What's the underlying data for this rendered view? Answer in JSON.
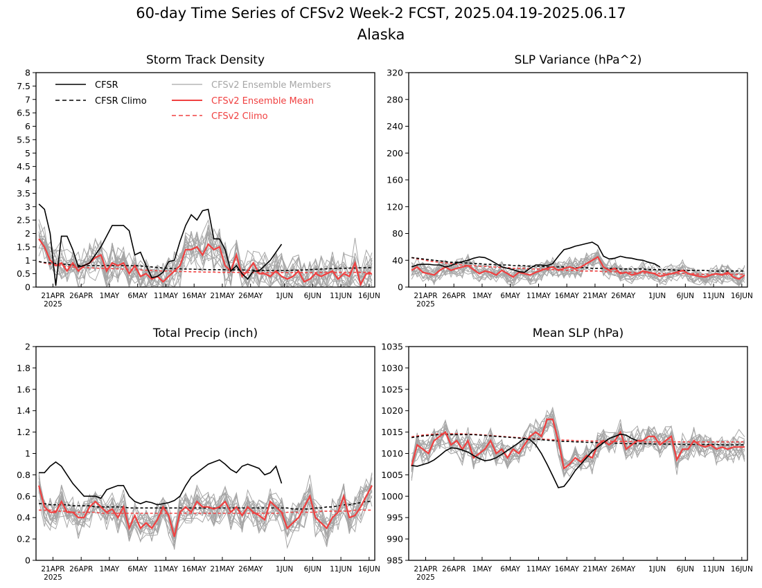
{
  "figure": {
    "title_line1": "60-day Time Series of CFSv2 Week-2 FCST, 2025.04.19-2025.06.17",
    "title_line2": "Alaska"
  },
  "colors": {
    "cfsr": "#000000",
    "ensemble_members": "#a6a6a6",
    "ensemble_mean": "#f04040",
    "cfsv2_climo": "#f04040"
  },
  "legend": {
    "cfsr": "CFSR",
    "cfsr_climo": "CFSR Climo",
    "members": "CFSv2 Ensemble Members",
    "ens_mean": "CFSv2 Ensemble Mean",
    "cfsv2_climo": "CFSv2 Climo"
  },
  "x_axis": {
    "ticks": [
      {
        "label": "21APR",
        "day": 3
      },
      {
        "label": "26APR",
        "day": 8
      },
      {
        "label": "1MAY",
        "day": 13
      },
      {
        "label": "6MAY",
        "day": 18
      },
      {
        "label": "11MAY",
        "day": 23
      },
      {
        "label": "16MAY",
        "day": 28
      },
      {
        "label": "21MAY",
        "day": 33
      },
      {
        "label": "26MAY",
        "day": 38
      },
      {
        "label": "1JUN",
        "day": 44
      },
      {
        "label": "6JUN",
        "day": 49
      },
      {
        "label": "11JUN",
        "day": 54
      },
      {
        "label": "16JUN",
        "day": 59
      }
    ],
    "year_label": "2025",
    "range": [
      0,
      60
    ]
  },
  "chart_data": [
    {
      "type": "line",
      "title": "Storm Track Density",
      "ylim": [
        0,
        8
      ],
      "yticks": [
        "0",
        "0.5",
        "1",
        "1.5",
        "2",
        "2.5",
        "3",
        "3.5",
        "4",
        "4.5",
        "5",
        "5.5",
        "6",
        "6.5",
        "7",
        "7.5",
        "8"
      ],
      "show_legend": true,
      "cfsr": [
        3.1,
        2.9,
        2.0,
        0.05,
        1.9,
        1.9,
        1.4,
        0.75,
        0.8,
        0.9,
        1.2,
        1.5,
        1.9,
        2.3,
        2.3,
        2.3,
        2.1,
        1.2,
        1.3,
        0.8,
        0.35,
        0.4,
        0.55,
        0.95,
        1.0,
        1.7,
        2.3,
        2.7,
        2.5,
        2.85,
        2.9,
        1.8,
        1.8,
        1.4,
        0.6,
        0.8,
        0.5,
        0.3,
        0.6,
        0.6,
        0.8,
        1.0,
        1.3,
        1.6
      ],
      "cfsr_climo": [
        0.95,
        0.92,
        0.9,
        0.88,
        0.86,
        0.84,
        0.82,
        0.81,
        0.8,
        0.8,
        0.8,
        0.8,
        0.8,
        0.8,
        0.8,
        0.8,
        0.8,
        0.8,
        0.79,
        0.77,
        0.75,
        0.73,
        0.71,
        0.7,
        0.69,
        0.68,
        0.67,
        0.67,
        0.66,
        0.66,
        0.65,
        0.65,
        0.65,
        0.65,
        0.64,
        0.64,
        0.64,
        0.63,
        0.63,
        0.63,
        0.62,
        0.62,
        0.62,
        0.62,
        0.62,
        0.63,
        0.63,
        0.64,
        0.65,
        0.66,
        0.67,
        0.68,
        0.69,
        0.7,
        0.7,
        0.71,
        0.71,
        0.72,
        0.72,
        0.72
      ],
      "cfsv2_climo": [
        0.95,
        0.9,
        0.85,
        0.82,
        0.8,
        0.77,
        0.75,
        0.74,
        0.73,
        0.72,
        0.71,
        0.7,
        0.7,
        0.69,
        0.68,
        0.67,
        0.66,
        0.65,
        0.64,
        0.63,
        0.62,
        0.61,
        0.6,
        0.6,
        0.59,
        0.58,
        0.58,
        0.57,
        0.57,
        0.56,
        0.56,
        0.56,
        0.55,
        0.55,
        0.55,
        0.55,
        0.54,
        0.54,
        0.54,
        0.54,
        0.54,
        0.54,
        0.54,
        0.54,
        0.54,
        0.54,
        0.54,
        0.54,
        0.54,
        0.54,
        0.55,
        0.55,
        0.55,
        0.55,
        0.55,
        0.55,
        0.55,
        0.55,
        0.55,
        0.55
      ],
      "ens_mean": [
        1.8,
        1.5,
        1.0,
        0.8,
        0.9,
        0.6,
        0.9,
        0.6,
        0.8,
        0.9,
        1.1,
        1.2,
        0.6,
        0.9,
        0.8,
        0.9,
        0.5,
        0.8,
        0.4,
        0.5,
        0.3,
        0.4,
        0.2,
        0.4,
        0.6,
        0.8,
        1.4,
        1.4,
        1.5,
        1.2,
        1.6,
        1.4,
        1.5,
        0.8,
        0.6,
        1.2,
        0.4,
        0.6,
        0.9,
        0.5,
        0.5,
        0.4,
        0.6,
        0.4,
        0.3,
        0.4,
        0.6,
        0.2,
        0.3,
        0.5,
        0.4,
        0.5,
        0.6,
        0.3,
        0.5,
        0.4,
        0.9,
        0.1,
        0.5,
        0.5
      ],
      "members": {
        "base": "ens_mean",
        "count": 16,
        "spread": 0.75,
        "min": 0,
        "max": 4.2
      }
    },
    {
      "type": "line",
      "title": "SLP Variance (hPa^2)",
      "ylim": [
        0,
        320
      ],
      "yticks": [
        "0",
        "40",
        "80",
        "120",
        "160",
        "200",
        "240",
        "280",
        "320"
      ],
      "show_legend": false,
      "cfsr": [
        30,
        33,
        34,
        34,
        33,
        33,
        30,
        32,
        36,
        38,
        40,
        43,
        45,
        44,
        40,
        35,
        30,
        28,
        26,
        23,
        22,
        28,
        33,
        33,
        32,
        35,
        46,
        56,
        58,
        61,
        63,
        65,
        67,
        62,
        46,
        42,
        43,
        46,
        44,
        43,
        41,
        40,
        37,
        35,
        30
      ],
      "cfsr_climo": [
        44,
        43,
        42,
        41,
        40,
        39,
        38,
        37,
        37,
        36,
        36,
        35,
        35,
        34,
        34,
        33,
        33,
        33,
        32,
        32,
        32,
        31,
        31,
        31,
        30,
        30,
        30,
        30,
        29,
        29,
        29,
        29,
        28,
        28,
        28,
        28,
        28,
        27,
        27,
        27,
        27,
        27,
        26,
        26,
        26,
        26,
        26,
        25,
        25,
        25,
        25,
        25,
        25,
        24,
        24,
        24,
        24,
        24,
        24,
        24
      ],
      "cfsv2_climo": [
        44,
        42,
        41,
        39,
        38,
        37,
        36,
        35,
        34,
        33,
        32,
        32,
        31,
        31,
        30,
        30,
        29,
        29,
        28,
        28,
        28,
        27,
        27,
        27,
        26,
        26,
        26,
        25,
        25,
        25,
        24,
        24,
        24,
        24,
        23,
        23,
        23,
        22,
        22,
        22,
        21,
        21,
        21,
        21,
        20,
        20,
        20,
        20,
        20,
        20,
        20,
        19,
        19,
        19,
        19,
        19,
        19,
        19,
        19,
        19
      ],
      "ens_mean": [
        25,
        30,
        22,
        20,
        18,
        25,
        30,
        25,
        28,
        30,
        32,
        26,
        20,
        24,
        22,
        18,
        25,
        20,
        15,
        22,
        20,
        18,
        22,
        25,
        28,
        30,
        25,
        28,
        30,
        27,
        30,
        35,
        40,
        45,
        30,
        25,
        28,
        20,
        22,
        18,
        20,
        24,
        22,
        20,
        16,
        18,
        20,
        22,
        25,
        20,
        18,
        16,
        15,
        18,
        20,
        18,
        22,
        15,
        12,
        18
      ],
      "members": {
        "base": "ens_mean",
        "count": 16,
        "spread": 14,
        "min": 2,
        "max": 84
      }
    },
    {
      "type": "line",
      "title": "Total Precip (inch)",
      "ylim": [
        0,
        2
      ],
      "yticks": [
        "0",
        "0.2",
        "0.4",
        "0.6",
        "0.8",
        "1",
        "1.2",
        "1.4",
        "1.6",
        "1.8",
        "2"
      ],
      "show_legend": false,
      "cfsr": [
        0.82,
        0.82,
        0.88,
        0.92,
        0.88,
        0.8,
        0.72,
        0.66,
        0.6,
        0.6,
        0.6,
        0.58,
        0.66,
        0.68,
        0.7,
        0.7,
        0.6,
        0.55,
        0.53,
        0.55,
        0.54,
        0.52,
        0.53,
        0.54,
        0.56,
        0.6,
        0.7,
        0.78,
        0.82,
        0.86,
        0.9,
        0.92,
        0.94,
        0.9,
        0.85,
        0.82,
        0.88,
        0.9,
        0.88,
        0.86,
        0.8,
        0.82,
        0.88,
        0.72
      ],
      "cfsr_climo": [
        0.53,
        0.53,
        0.52,
        0.52,
        0.52,
        0.52,
        0.51,
        0.51,
        0.51,
        0.51,
        0.5,
        0.5,
        0.5,
        0.5,
        0.5,
        0.5,
        0.49,
        0.49,
        0.49,
        0.49,
        0.49,
        0.49,
        0.49,
        0.49,
        0.49,
        0.49,
        0.49,
        0.49,
        0.49,
        0.49,
        0.49,
        0.49,
        0.49,
        0.49,
        0.49,
        0.49,
        0.49,
        0.49,
        0.49,
        0.49,
        0.49,
        0.49,
        0.49,
        0.49,
        0.49,
        0.48,
        0.48,
        0.48,
        0.48,
        0.49,
        0.49,
        0.5,
        0.5,
        0.51,
        0.52,
        0.52,
        0.53,
        0.54,
        0.55,
        0.55
      ],
      "cfsv2_climo": [
        0.47,
        0.47,
        0.47,
        0.46,
        0.46,
        0.46,
        0.45,
        0.45,
        0.45,
        0.45,
        0.45,
        0.44,
        0.44,
        0.44,
        0.44,
        0.44,
        0.44,
        0.44,
        0.44,
        0.44,
        0.44,
        0.44,
        0.44,
        0.44,
        0.44,
        0.44,
        0.44,
        0.44,
        0.44,
        0.44,
        0.44,
        0.44,
        0.44,
        0.44,
        0.44,
        0.44,
        0.44,
        0.44,
        0.44,
        0.44,
        0.44,
        0.44,
        0.44,
        0.44,
        0.45,
        0.45,
        0.45,
        0.45,
        0.45,
        0.45,
        0.46,
        0.46,
        0.46,
        0.46,
        0.46,
        0.46,
        0.47,
        0.47,
        0.47,
        0.47
      ],
      "ens_mean": [
        0.7,
        0.5,
        0.45,
        0.45,
        0.55,
        0.45,
        0.45,
        0.4,
        0.4,
        0.5,
        0.55,
        0.5,
        0.45,
        0.48,
        0.4,
        0.5,
        0.3,
        0.42,
        0.3,
        0.35,
        0.3,
        0.38,
        0.5,
        0.42,
        0.22,
        0.45,
        0.5,
        0.45,
        0.55,
        0.5,
        0.5,
        0.48,
        0.5,
        0.55,
        0.45,
        0.5,
        0.42,
        0.5,
        0.45,
        0.42,
        0.38,
        0.55,
        0.5,
        0.45,
        0.3,
        0.35,
        0.4,
        0.5,
        0.6,
        0.4,
        0.35,
        0.3,
        0.4,
        0.45,
        0.6,
        0.4,
        0.42,
        0.5,
        0.6,
        0.7
      ],
      "members": {
        "base": "ens_mean",
        "count": 16,
        "spread": 0.16,
        "min": 0.1,
        "max": 0.82
      }
    },
    {
      "type": "line",
      "title": "Mean SLP (hPa)",
      "ylim": [
        985,
        1035
      ],
      "yticks": [
        "985",
        "990",
        "995",
        "1000",
        "1005",
        "1010",
        "1015",
        "1020",
        "1025",
        "1030",
        "1035"
      ],
      "show_legend": false,
      "cfsr": [
        1007.2,
        1007,
        1007.4,
        1007.8,
        1008.5,
        1009.5,
        1010.6,
        1011.3,
        1011.2,
        1010.8,
        1010.3,
        1009.5,
        1008.8,
        1008.3,
        1008.5,
        1009,
        1009.8,
        1010.7,
        1011.6,
        1012.5,
        1013.5,
        1013.2,
        1012,
        1010,
        1007.5,
        1004.8,
        1002,
        1002.3,
        1004,
        1006,
        1007.5,
        1009,
        1010.5,
        1011.5,
        1012.5,
        1013.5,
        1014,
        1014.5,
        1014.3,
        1013.5,
        1013
      ],
      "cfsr_climo": [
        1013.7,
        1013.9,
        1014.1,
        1014.2,
        1014.3,
        1014.4,
        1014.4,
        1014.4,
        1014.4,
        1014.4,
        1014.4,
        1014.4,
        1014.3,
        1014.2,
        1014.1,
        1014,
        1013.9,
        1013.8,
        1013.7,
        1013.6,
        1013.5,
        1013.4,
        1013.3,
        1013.2,
        1013.1,
        1013,
        1012.9,
        1012.8,
        1012.8,
        1012.7,
        1012.7,
        1012.6,
        1012.6,
        1012.5,
        1012.5,
        1012.4,
        1012.4,
        1012.4,
        1012.3,
        1012.3,
        1012.3,
        1012.3,
        1012.3,
        1012.2,
        1012.2,
        1012.2,
        1012.2,
        1012.2,
        1012.1,
        1012.1,
        1012.1,
        1012.1,
        1012.1,
        1012.1,
        1012.1,
        1012,
        1012,
        1012,
        1012,
        1012
      ],
      "cfsv2_climo": [
        1013.9,
        1014.1,
        1014.3,
        1014.4,
        1014.5,
        1014.6,
        1014.6,
        1014.6,
        1014.6,
        1014.6,
        1014.5,
        1014.5,
        1014.4,
        1014.3,
        1014.2,
        1014.1,
        1014,
        1013.9,
        1013.8,
        1013.7,
        1013.6,
        1013.5,
        1013.4,
        1013.4,
        1013.3,
        1013.2,
        1013.2,
        1013.1,
        1013.1,
        1013,
        1013,
        1013,
        1012.9,
        1012.9,
        1012.9,
        1012.9,
        1012.8,
        1012.8,
        1012.8,
        1012.8,
        1012.8,
        1012.7,
        1012.7,
        1012.7,
        1012.7,
        1012.7,
        1012.7,
        1012.7,
        1012.7,
        1012.7,
        1012.7,
        1012.7,
        1012.7,
        1012.7,
        1012.7,
        1012.7,
        1012.7,
        1012.7,
        1012.7,
        1012.7
      ],
      "ens_mean": [
        1007,
        1012,
        1011,
        1010,
        1013,
        1014,
        1015,
        1012,
        1013,
        1011,
        1013,
        1009,
        1010,
        1011,
        1013,
        1010,
        1011,
        1009,
        1011,
        1010,
        1012,
        1014,
        1015,
        1014,
        1018,
        1018,
        1013,
        1006.5,
        1007.5,
        1009,
        1008,
        1009.5,
        1009,
        1012,
        1013,
        1012,
        1013,
        1015,
        1011,
        1012,
        1013,
        1013,
        1014,
        1014,
        1012,
        1013,
        1014,
        1008.5,
        1011,
        1011,
        1013,
        1012,
        1011.5,
        1012,
        1011,
        1011.5,
        1011,
        1011.5,
        1011.5,
        1011.5
      ],
      "members": {
        "base": "ens_mean",
        "count": 16,
        "spread": 3.2,
        "min": 1001,
        "max": 1021
      }
    }
  ]
}
